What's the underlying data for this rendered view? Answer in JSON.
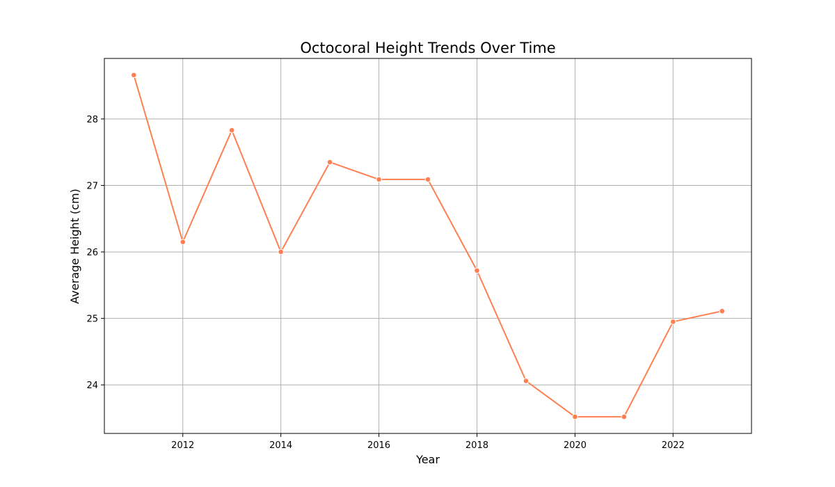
{
  "chart_data": {
    "type": "line",
    "title": "Octocoral Height Trends Over Time",
    "xlabel": "Year",
    "ylabel": "Average Height (cm)",
    "x": [
      2011,
      2012,
      2013,
      2014,
      2015,
      2016,
      2017,
      2018,
      2019,
      2020,
      2021,
      2022,
      2023
    ],
    "series": [
      {
        "values": [
          28.66,
          26.15,
          27.83,
          26.0,
          27.35,
          27.09,
          27.09,
          25.72,
          24.06,
          23.52,
          23.52,
          24.95,
          25.11
        ],
        "color": "#ff7f50",
        "marker": "circle"
      }
    ],
    "xlim": [
      2010.4,
      2023.6
    ],
    "ylim": [
      23.27,
      28.91
    ],
    "xticks": [
      "2012",
      "2014",
      "2016",
      "2018",
      "2020",
      "2022"
    ],
    "yticks": [
      "24",
      "25",
      "26",
      "27",
      "28"
    ],
    "grid": true,
    "legend": "none",
    "colors": {
      "line": "#ff7f50",
      "grid": "#b0b0b0",
      "axes": "#000000",
      "background": "#ffffff"
    }
  }
}
